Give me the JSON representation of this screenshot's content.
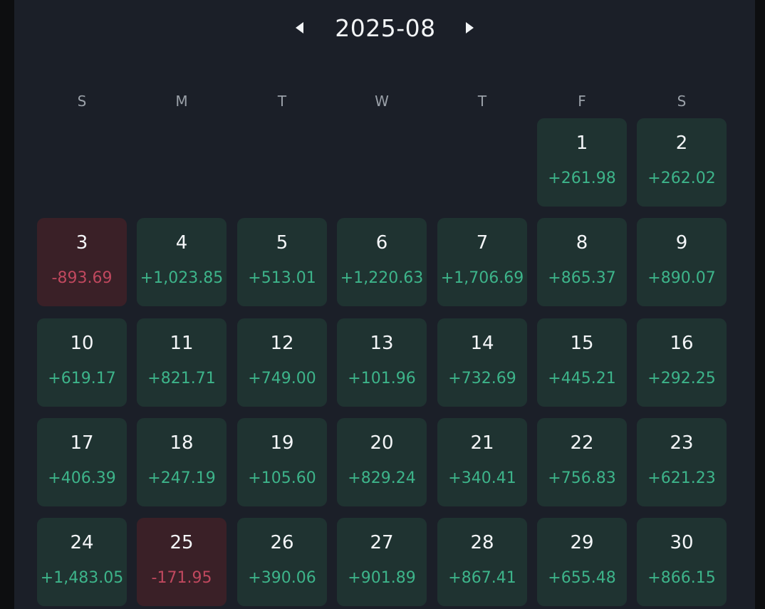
{
  "header": {
    "month": "2025-08",
    "prev_icon": "caret-left-icon",
    "next_icon": "caret-right-icon"
  },
  "weekdays": [
    "S",
    "M",
    "T",
    "W",
    "T",
    "F",
    "S"
  ],
  "colors": {
    "background": "#1b1f28",
    "profit_cell": "#1f3331",
    "loss_cell": "#3a2027",
    "profit_text": "#3db48a",
    "loss_text": "#c0485e"
  },
  "days": [
    {
      "day": "1",
      "pnl": "+261.98",
      "status": "profit"
    },
    {
      "day": "2",
      "pnl": "+262.02",
      "status": "profit"
    },
    {
      "day": "3",
      "pnl": "-893.69",
      "status": "loss"
    },
    {
      "day": "4",
      "pnl": "+1,023.85",
      "status": "profit"
    },
    {
      "day": "5",
      "pnl": "+513.01",
      "status": "profit"
    },
    {
      "day": "6",
      "pnl": "+1,220.63",
      "status": "profit"
    },
    {
      "day": "7",
      "pnl": "+1,706.69",
      "status": "profit"
    },
    {
      "day": "8",
      "pnl": "+865.37",
      "status": "profit"
    },
    {
      "day": "9",
      "pnl": "+890.07",
      "status": "profit"
    },
    {
      "day": "10",
      "pnl": "+619.17",
      "status": "profit"
    },
    {
      "day": "11",
      "pnl": "+821.71",
      "status": "profit"
    },
    {
      "day": "12",
      "pnl": "+749.00",
      "status": "profit"
    },
    {
      "day": "13",
      "pnl": "+101.96",
      "status": "profit"
    },
    {
      "day": "14",
      "pnl": "+732.69",
      "status": "profit"
    },
    {
      "day": "15",
      "pnl": "+445.21",
      "status": "profit"
    },
    {
      "day": "16",
      "pnl": "+292.25",
      "status": "profit"
    },
    {
      "day": "17",
      "pnl": "+406.39",
      "status": "profit"
    },
    {
      "day": "18",
      "pnl": "+247.19",
      "status": "profit"
    },
    {
      "day": "19",
      "pnl": "+105.60",
      "status": "profit"
    },
    {
      "day": "20",
      "pnl": "+829.24",
      "status": "profit"
    },
    {
      "day": "21",
      "pnl": "+340.41",
      "status": "profit"
    },
    {
      "day": "22",
      "pnl": "+756.83",
      "status": "profit"
    },
    {
      "day": "23",
      "pnl": "+621.23",
      "status": "profit"
    },
    {
      "day": "24",
      "pnl": "+1,483.05",
      "status": "profit"
    },
    {
      "day": "25",
      "pnl": "-171.95",
      "status": "loss"
    },
    {
      "day": "26",
      "pnl": "+390.06",
      "status": "profit"
    },
    {
      "day": "27",
      "pnl": "+901.89",
      "status": "profit"
    },
    {
      "day": "28",
      "pnl": "+867.41",
      "status": "profit"
    },
    {
      "day": "29",
      "pnl": "+655.48",
      "status": "profit"
    },
    {
      "day": "30",
      "pnl": "+866.15",
      "status": "profit"
    }
  ]
}
